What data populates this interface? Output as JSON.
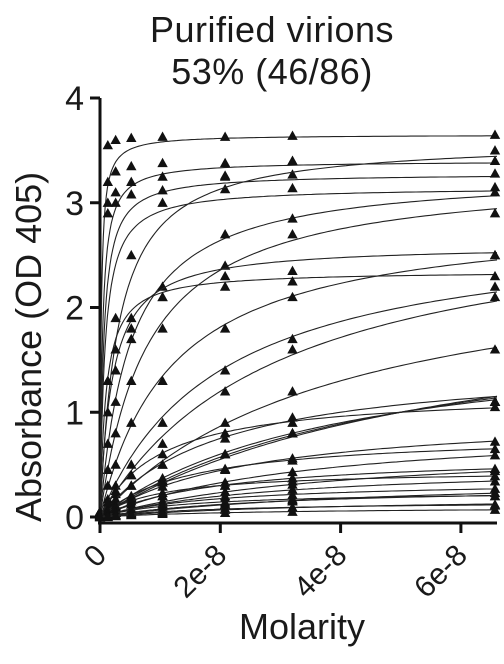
{
  "chart_data": {
    "type": "scatter",
    "title": "Purified virions",
    "subtitle": "53% (46/86)",
    "xlabel": "Molarity",
    "ylabel": "Absorbance (OD 405)",
    "xlim": [
      0,
      6.6e-08
    ],
    "ylim": [
      0,
      4
    ],
    "x_ticks": [
      0,
      2e-08,
      4e-08,
      6e-08
    ],
    "x_tick_labels": [
      "0",
      "2e-8",
      "4e-8",
      "6e-8"
    ],
    "y_ticks": [
      0,
      1,
      2,
      3,
      4
    ],
    "y_tick_labels": [
      "0",
      "1",
      "2",
      "3",
      "4"
    ],
    "grid": false,
    "legend": "none",
    "x_sample_points": [
      0,
      1.3e-09,
      2.6e-09,
      5.2e-09,
      1.04e-08,
      2.08e-08,
      3.2e-08,
      6.6e-08
    ],
    "series": [
      {
        "ymax": 3.65,
        "kd": 2e-10,
        "points": [
          0.05,
          3.55,
          3.6,
          3.62,
          3.63,
          3.63,
          3.64,
          3.65
        ]
      },
      {
        "ymax": 3.4,
        "kd": 4e-10,
        "points": [
          0.05,
          3.2,
          3.3,
          3.35,
          3.38,
          3.38,
          3.4,
          3.4
        ]
      },
      {
        "ymax": 3.28,
        "kd": 6e-10,
        "points": [
          0.05,
          3.0,
          3.1,
          3.2,
          3.25,
          3.26,
          3.27,
          3.28
        ]
      },
      {
        "ymax": 3.15,
        "kd": 8e-10,
        "points": [
          0.04,
          2.9,
          3.0,
          3.08,
          3.12,
          3.13,
          3.14,
          3.15
        ]
      },
      {
        "ymax": 3.6,
        "kd": 3e-09,
        "points": [
          0.05,
          1.3,
          1.9,
          2.5,
          3.0,
          3.25,
          3.4,
          3.5
        ]
      },
      {
        "ymax": 3.3,
        "kd": 8e-09,
        "points": [
          0.05,
          0.45,
          0.8,
          1.3,
          1.8,
          2.4,
          2.7,
          2.9
        ]
      },
      {
        "ymax": 3.3,
        "kd": 5e-09,
        "points": [
          0.05,
          0.7,
          1.1,
          1.7,
          2.2,
          2.7,
          2.85,
          3.1
        ]
      },
      {
        "ymax": 2.9,
        "kd": 1.2e-08,
        "points": [
          0.04,
          0.3,
          0.5,
          0.9,
          1.3,
          1.8,
          2.1,
          2.5
        ]
      },
      {
        "ymax": 2.6,
        "kd": 2e-09,
        "points": [
          0.05,
          1.0,
          1.4,
          1.8,
          2.1,
          2.3,
          2.35,
          2.5
        ]
      },
      {
        "ymax": 2.35,
        "kd": 1e-09,
        "points": [
          0.05,
          1.3,
          1.6,
          1.9,
          2.1,
          2.2,
          2.25,
          2.3
        ]
      },
      {
        "ymax": 3.0,
        "kd": 3e-08,
        "points": [
          0.03,
          0.12,
          0.22,
          0.4,
          0.7,
          1.2,
          1.6,
          2.2
        ]
      },
      {
        "ymax": 2.8,
        "kd": 2e-08,
        "points": [
          0.03,
          0.17,
          0.3,
          0.5,
          0.9,
          1.4,
          1.7,
          2.1
        ]
      },
      {
        "ymax": 2.6,
        "kd": 4e-08,
        "points": [
          0.03,
          0.08,
          0.15,
          0.3,
          0.5,
          0.9,
          1.2,
          1.6
        ]
      },
      {
        "ymax": 2.2,
        "kd": 6e-08,
        "points": [
          0.02,
          0.05,
          0.09,
          0.18,
          0.33,
          0.6,
          0.8,
          1.1
        ]
      },
      {
        "ymax": 2.0,
        "kd": 5e-08,
        "points": [
          0.02,
          0.05,
          0.1,
          0.19,
          0.35,
          0.6,
          0.8,
          1.1
        ]
      },
      {
        "ymax": 1.8,
        "kd": 4e-08,
        "points": [
          0.02,
          0.06,
          0.11,
          0.2,
          0.37,
          0.6,
          0.8,
          1.1
        ]
      },
      {
        "ymax": 1.5,
        "kd": 2e-08,
        "points": [
          0.02,
          0.09,
          0.17,
          0.3,
          0.5,
          0.75,
          0.95,
          1.1
        ]
      },
      {
        "ymax": 1.2,
        "kd": 1e-08,
        "points": [
          0.02,
          0.14,
          0.25,
          0.4,
          0.6,
          0.8,
          0.9,
          1.05
        ]
      },
      {
        "ymax": 1.0,
        "kd": 2.5e-08,
        "points": [
          0.02,
          0.05,
          0.09,
          0.17,
          0.29,
          0.45,
          0.56,
          0.72
        ]
      },
      {
        "ymax": 0.9,
        "kd": 3.5e-08,
        "points": [
          0.01,
          0.03,
          0.06,
          0.12,
          0.2,
          0.33,
          0.43,
          0.59
        ]
      },
      {
        "ymax": 0.8,
        "kd": 1.5e-08,
        "points": [
          0.01,
          0.06,
          0.11,
          0.2,
          0.33,
          0.46,
          0.54,
          0.65
        ]
      },
      {
        "ymax": 0.7,
        "kd": 4e-08,
        "points": [
          0.01,
          0.02,
          0.04,
          0.08,
          0.15,
          0.24,
          0.31,
          0.44
        ]
      },
      {
        "ymax": 0.6,
        "kd": 2e-08,
        "points": [
          0.01,
          0.04,
          0.07,
          0.12,
          0.2,
          0.3,
          0.37,
          0.46
        ]
      },
      {
        "ymax": 0.5,
        "kd": 3e-08,
        "points": [
          0.01,
          0.02,
          0.04,
          0.07,
          0.13,
          0.2,
          0.26,
          0.34
        ]
      },
      {
        "ymax": 0.45,
        "kd": 1e-08,
        "points": [
          0.01,
          0.05,
          0.09,
          0.15,
          0.23,
          0.3,
          0.34,
          0.39
        ]
      },
      {
        "ymax": 0.4,
        "kd": 5e-08,
        "points": [
          0.01,
          0.01,
          0.02,
          0.04,
          0.07,
          0.12,
          0.16,
          0.23
        ]
      },
      {
        "ymax": 0.35,
        "kd": 2e-08,
        "points": [
          0.01,
          0.02,
          0.04,
          0.07,
          0.12,
          0.18,
          0.21,
          0.27
        ]
      },
      {
        "ymax": 0.3,
        "kd": 3e-08,
        "points": [
          0.0,
          0.01,
          0.02,
          0.05,
          0.08,
          0.12,
          0.15,
          0.2
        ]
      },
      {
        "ymax": 0.25,
        "kd": 1.5e-08,
        "points": [
          0.0,
          0.02,
          0.04,
          0.06,
          0.1,
          0.14,
          0.17,
          0.2
        ]
      },
      {
        "ymax": 0.2,
        "kd": 4e-08,
        "points": [
          0.0,
          0.01,
          0.01,
          0.02,
          0.04,
          0.07,
          0.09,
          0.12
        ]
      },
      {
        "ymax": 0.15,
        "kd": 2e-08,
        "points": [
          0.0,
          0.01,
          0.02,
          0.03,
          0.05,
          0.08,
          0.09,
          0.11
        ]
      },
      {
        "ymax": 0.1,
        "kd": 3e-08,
        "points": [
          0.0,
          0.0,
          0.01,
          0.02,
          0.03,
          0.04,
          0.05,
          0.07
        ]
      }
    ]
  }
}
